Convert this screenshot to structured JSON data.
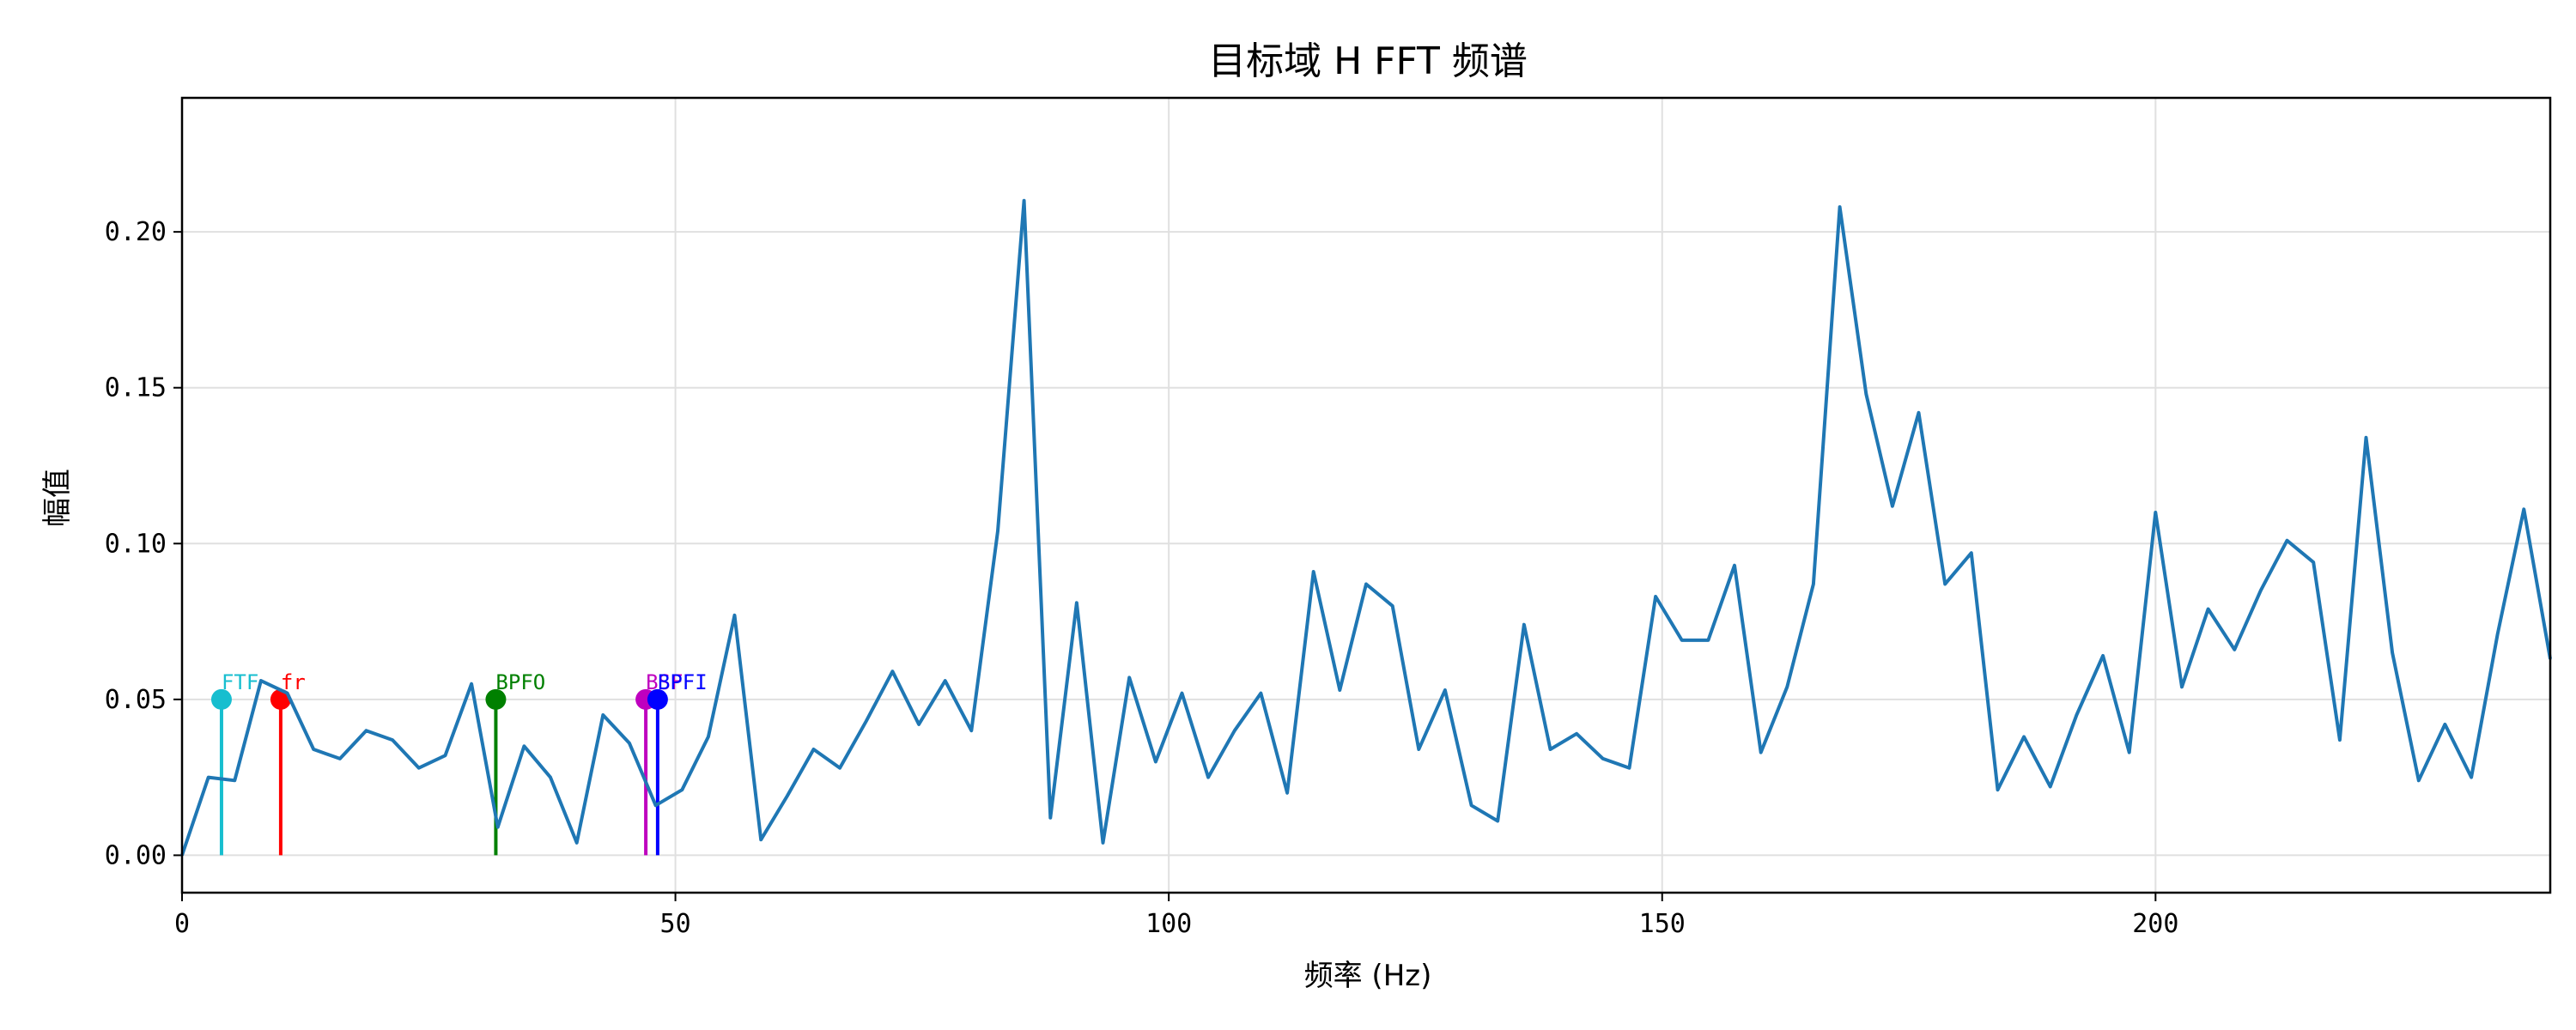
{
  "chart_data": {
    "type": "line",
    "title": "目标域 H FFT 频谱",
    "xlabel": "频率 (Hz)",
    "ylabel": "幅值",
    "xlim": [
      0,
      240
    ],
    "ylim": [
      -0.012,
      0.243
    ],
    "xticks": [
      0,
      50,
      100,
      150,
      200
    ],
    "xtick_labels": [
      "0",
      "50",
      "100",
      "150",
      "200"
    ],
    "yticks": [
      0.0,
      0.05,
      0.1,
      0.15,
      0.2
    ],
    "ytick_labels": [
      "0.00",
      "0.05",
      "0.10",
      "0.15",
      "0.20"
    ],
    "grid": true,
    "series_color": "#1f77b4",
    "x": [
      0.0,
      2.67,
      5.33,
      8.0,
      10.67,
      13.33,
      16.0,
      18.67,
      21.33,
      24.0,
      26.67,
      29.33,
      32.0,
      34.67,
      37.33,
      40.0,
      42.67,
      45.33,
      48.0,
      50.67,
      53.33,
      56.0,
      58.67,
      61.33,
      64.0,
      66.67,
      69.33,
      72.0,
      74.67,
      77.33,
      80.0,
      82.67,
      85.33,
      88.0,
      90.67,
      93.33,
      96.0,
      98.67,
      101.33,
      104.0,
      106.67,
      109.33,
      112.0,
      114.67,
      117.33,
      120.0,
      122.67,
      125.33,
      128.0,
      130.67,
      133.33,
      136.0,
      138.67,
      141.33,
      144.0,
      146.67,
      149.33,
      152.0,
      154.67,
      157.33,
      160.0,
      162.67,
      165.33,
      168.0,
      170.67,
      173.33,
      176.0,
      178.67,
      181.33,
      184.0,
      186.67,
      189.33,
      192.0,
      194.67,
      197.33,
      200.0,
      202.67,
      205.33,
      208.0,
      210.67,
      213.33,
      216.0,
      218.67,
      221.33,
      224.0,
      226.67,
      229.33,
      232.0,
      234.67,
      237.33,
      240.0
    ],
    "y": [
      0.0,
      0.025,
      0.024,
      0.056,
      0.052,
      0.034,
      0.031,
      0.04,
      0.037,
      0.028,
      0.032,
      0.055,
      0.009,
      0.035,
      0.025,
      0.004,
      0.045,
      0.036,
      0.016,
      0.021,
      0.038,
      0.077,
      0.005,
      0.019,
      0.034,
      0.028,
      0.043,
      0.059,
      0.042,
      0.056,
      0.04,
      0.104,
      0.21,
      0.012,
      0.081,
      0.004,
      0.057,
      0.03,
      0.052,
      0.025,
      0.04,
      0.052,
      0.02,
      0.091,
      0.053,
      0.087,
      0.08,
      0.034,
      0.053,
      0.016,
      0.011,
      0.074,
      0.034,
      0.039,
      0.031,
      0.028,
      0.083,
      0.069,
      0.069,
      0.093,
      0.033,
      0.054,
      0.087,
      0.208,
      0.148,
      0.112,
      0.142,
      0.087,
      0.097,
      0.021,
      0.038,
      0.022,
      0.045,
      0.064,
      0.033,
      0.11,
      0.054,
      0.079,
      0.066,
      0.085,
      0.101,
      0.094,
      0.037,
      0.134,
      0.065,
      0.024,
      0.042,
      0.025,
      0.071,
      0.111,
      0.063
    ],
    "markers": [
      {
        "label": "FTF",
        "x": 4.0,
        "y": 0.05,
        "color": "#17becf"
      },
      {
        "label": "fr",
        "x": 10.0,
        "y": 0.05,
        "color": "#ff0000"
      },
      {
        "label": "BPFO",
        "x": 31.8,
        "y": 0.05,
        "color": "#008000"
      },
      {
        "label": "BSF",
        "x": 47.0,
        "y": 0.05,
        "color": "#bf00bf"
      },
      {
        "label": "BPFI",
        "x": 48.2,
        "y": 0.05,
        "color": "#0000ff"
      }
    ]
  }
}
